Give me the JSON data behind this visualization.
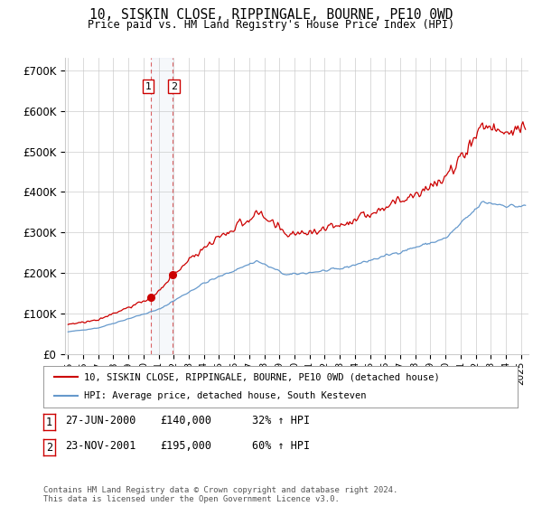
{
  "title": "10, SISKIN CLOSE, RIPPINGALE, BOURNE, PE10 0WD",
  "subtitle": "Price paid vs. HM Land Registry's House Price Index (HPI)",
  "ylabel_ticks": [
    "£0",
    "£100K",
    "£200K",
    "£300K",
    "£400K",
    "£500K",
    "£600K",
    "£700K"
  ],
  "ytick_values": [
    0,
    100000,
    200000,
    300000,
    400000,
    500000,
    600000,
    700000
  ],
  "ylim": [
    0,
    730000
  ],
  "xlim_start": 1994.8,
  "xlim_end": 2025.5,
  "red_line_color": "#cc0000",
  "blue_line_color": "#6699cc",
  "background_color": "#ffffff",
  "grid_color": "#cccccc",
  "transaction1_x": 2000.49,
  "transaction2_x": 2001.9,
  "transaction1_price": 140000,
  "transaction2_price": 195000,
  "legend_label_red": "10, SISKIN CLOSE, RIPPINGALE, BOURNE, PE10 0WD (detached house)",
  "legend_label_blue": "HPI: Average price, detached house, South Kesteven",
  "footnote": "Contains HM Land Registry data © Crown copyright and database right 2024.\nThis data is licensed under the Open Government Licence v3.0."
}
